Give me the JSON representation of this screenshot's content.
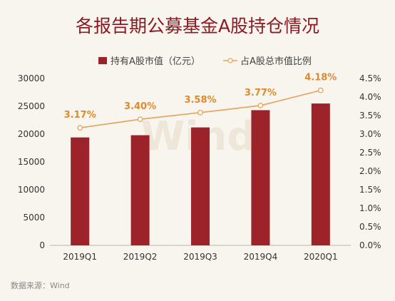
{
  "title": "各报告期公募基金A股持仓情况",
  "source": "数据来源：Wind",
  "watermark": "Wind",
  "colors": {
    "bar": "#9b2329",
    "line": "#e3a35a",
    "accent_label": "#e08a2c",
    "title": "#8b1a22"
  },
  "chart_data": {
    "type": "bar+line",
    "categories": [
      "2019Q1",
      "2019Q2",
      "2019Q3",
      "2019Q4",
      "2020Q1"
    ],
    "series": [
      {
        "name": "持有A股市值（亿元）",
        "type": "bar",
        "axis": "left",
        "values": [
          19400,
          19800,
          21200,
          24300,
          25500
        ]
      },
      {
        "name": "占A股总市值比例",
        "type": "line",
        "axis": "right",
        "values": [
          3.17,
          3.4,
          3.58,
          3.77,
          4.18
        ],
        "labels": [
          "3.17%",
          "3.40%",
          "3.58%",
          "3.77%",
          "4.18%"
        ]
      }
    ],
    "y_left": {
      "min": 0,
      "max": 30000,
      "ticks": [
        "0",
        "5000",
        "10000",
        "15000",
        "20000",
        "25000",
        "30000"
      ]
    },
    "y_right": {
      "min": 0,
      "max": 4.5,
      "ticks": [
        "0.0%",
        "0.5%",
        "1.0%",
        "1.5%",
        "2.0%",
        "2.5%",
        "3.0%",
        "3.5%",
        "4.0%",
        "4.5%"
      ]
    },
    "grid": false,
    "legend": "top"
  }
}
